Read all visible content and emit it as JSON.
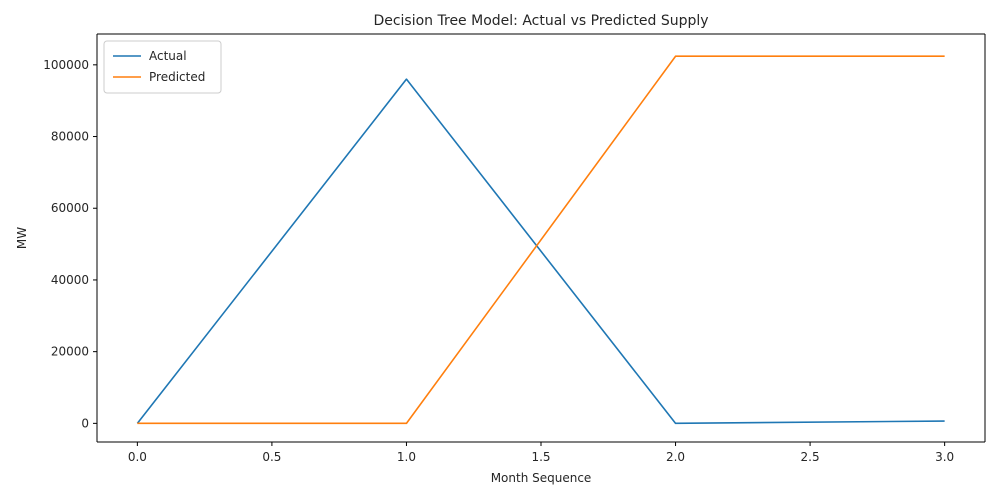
{
  "chart_data": {
    "type": "line",
    "title": "Decision Tree Model: Actual vs Predicted Supply",
    "xlabel": "Month Sequence",
    "ylabel": "MW",
    "xlim": [
      -0.15,
      3.15
    ],
    "ylim": [
      -5200,
      108600
    ],
    "xticks": [
      0.0,
      0.5,
      1.0,
      1.5,
      2.0,
      2.5,
      3.0
    ],
    "xtick_labels": [
      "0.0",
      "0.5",
      "1.0",
      "1.5",
      "2.0",
      "2.5",
      "3.0"
    ],
    "yticks": [
      0,
      20000,
      40000,
      60000,
      80000,
      100000
    ],
    "ytick_labels": [
      "0",
      "20000",
      "40000",
      "60000",
      "80000",
      "100000"
    ],
    "grid": false,
    "legend_position": "top-left",
    "x": [
      0,
      1,
      2,
      3
    ],
    "series": [
      {
        "name": "Actual",
        "color": "#1f77b4",
        "values": [
          0,
          96000,
          0,
          650
        ]
      },
      {
        "name": "Predicted",
        "color": "#ff7f0e",
        "values": [
          0,
          0,
          102400,
          102400
        ]
      }
    ]
  }
}
